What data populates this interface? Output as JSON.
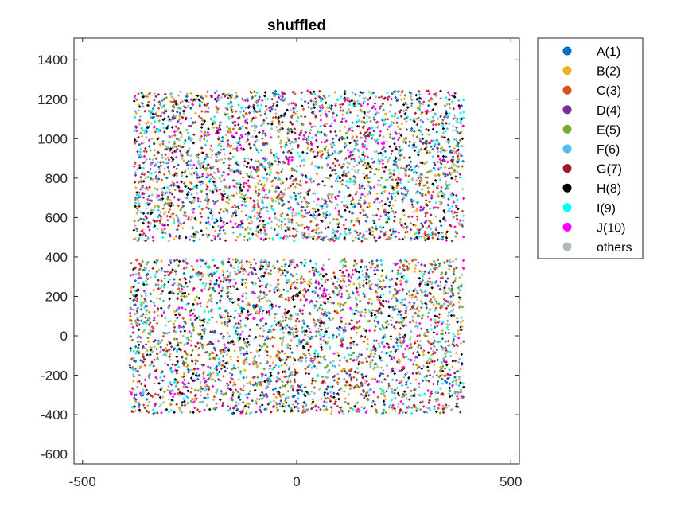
{
  "chart_data": {
    "type": "scatter",
    "title": "shuffled",
    "xlabel": "",
    "ylabel": "",
    "xlim": [
      -520,
      520
    ],
    "ylim": [
      -650,
      1510
    ],
    "xticks": [
      -500,
      0,
      500
    ],
    "yticks": [
      -600,
      -400,
      -200,
      0,
      200,
      400,
      600,
      800,
      1000,
      1200,
      1400
    ],
    "grid": false,
    "legend_position": "outside-top-right",
    "regions": [
      {
        "name": "upper block",
        "x_range": [
          -380,
          390
        ],
        "y_range": [
          480,
          1245
        ]
      },
      {
        "name": "lower block",
        "x_range": [
          -390,
          390
        ],
        "y_range": [
          -395,
          390
        ]
      }
    ],
    "series": [
      {
        "name": "A(1)",
        "color": "#0072BD"
      },
      {
        "name": "B(2)",
        "color": "#EDB120"
      },
      {
        "name": "C(3)",
        "color": "#D95319"
      },
      {
        "name": "D(4)",
        "color": "#7E2F8E"
      },
      {
        "name": "E(5)",
        "color": "#77AC30"
      },
      {
        "name": "F(6)",
        "color": "#4DBEEE"
      },
      {
        "name": "G(7)",
        "color": "#A2142F"
      },
      {
        "name": "H(8)",
        "color": "#000000"
      },
      {
        "name": "I(9)",
        "color": "#00FFFF"
      },
      {
        "name": "J(10)",
        "color": "#FF00FF"
      },
      {
        "name": "others",
        "color": "#B0BCB8"
      }
    ]
  }
}
